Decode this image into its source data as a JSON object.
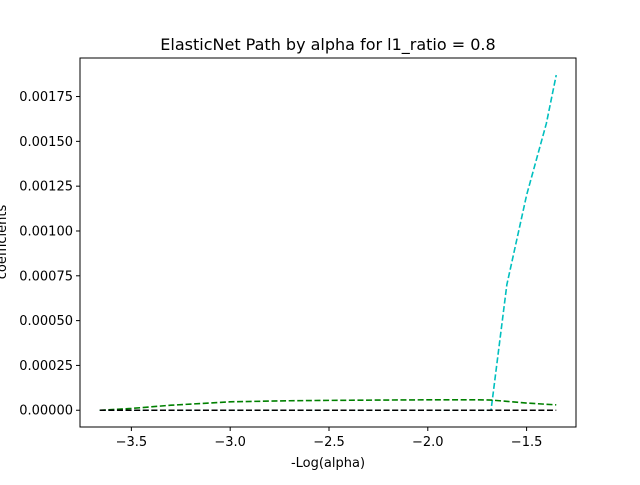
{
  "chart_data": {
    "type": "line",
    "title": "ElasticNet Path by alpha for l1_ratio = 0.8",
    "xlabel": "-Log(alpha)",
    "ylabel": "coefficients",
    "xlim": [
      -3.76,
      -1.25
    ],
    "ylim": [
      -9.35e-05,
      0.001965
    ],
    "x_ticks": [
      -3.5,
      -3.0,
      -2.5,
      -2.0,
      -1.5
    ],
    "x_tick_labels": [
      "−3.5",
      "−3.0",
      "−2.5",
      "−2.0",
      "−1.5"
    ],
    "y_ticks": [
      0.0,
      0.00025,
      0.0005,
      0.00075,
      0.001,
      0.00125,
      0.0015,
      0.00175
    ],
    "y_tick_labels": [
      "0.00000",
      "0.00025",
      "0.00050",
      "0.00075",
      "0.00100",
      "0.00125",
      "0.00150",
      "0.00175"
    ],
    "grid": false,
    "series": [
      {
        "color": "#00bfbf",
        "line_style": "dashed",
        "x": [
          -3.66,
          -3.4,
          -3.0,
          -2.5,
          -2.0,
          -1.7,
          -1.68,
          -1.6,
          -1.5,
          -1.4,
          -1.35
        ],
        "values": [
          0.0,
          0.0,
          0.0,
          0.0,
          0.0,
          0.0,
          0.0,
          0.0007,
          0.0012,
          0.0016,
          0.00187
        ]
      },
      {
        "color": "#008000",
        "line_style": "dashed",
        "x": [
          -3.66,
          -3.5,
          -3.3,
          -3.0,
          -2.7,
          -2.5,
          -2.2,
          -2.0,
          -1.75,
          -1.68,
          -1.5,
          -1.35
        ],
        "values": [
          0.0,
          1e-05,
          2.8e-05,
          4.7e-05,
          5.3e-05,
          5.5e-05,
          5.7e-05,
          5.8e-05,
          5.8e-05,
          5.7e-05,
          4e-05,
          3e-05
        ]
      },
      {
        "color": "#000000",
        "line_style": "dashed",
        "x": [
          -3.66,
          -1.35
        ],
        "values": [
          0.0,
          0.0
        ]
      }
    ]
  }
}
